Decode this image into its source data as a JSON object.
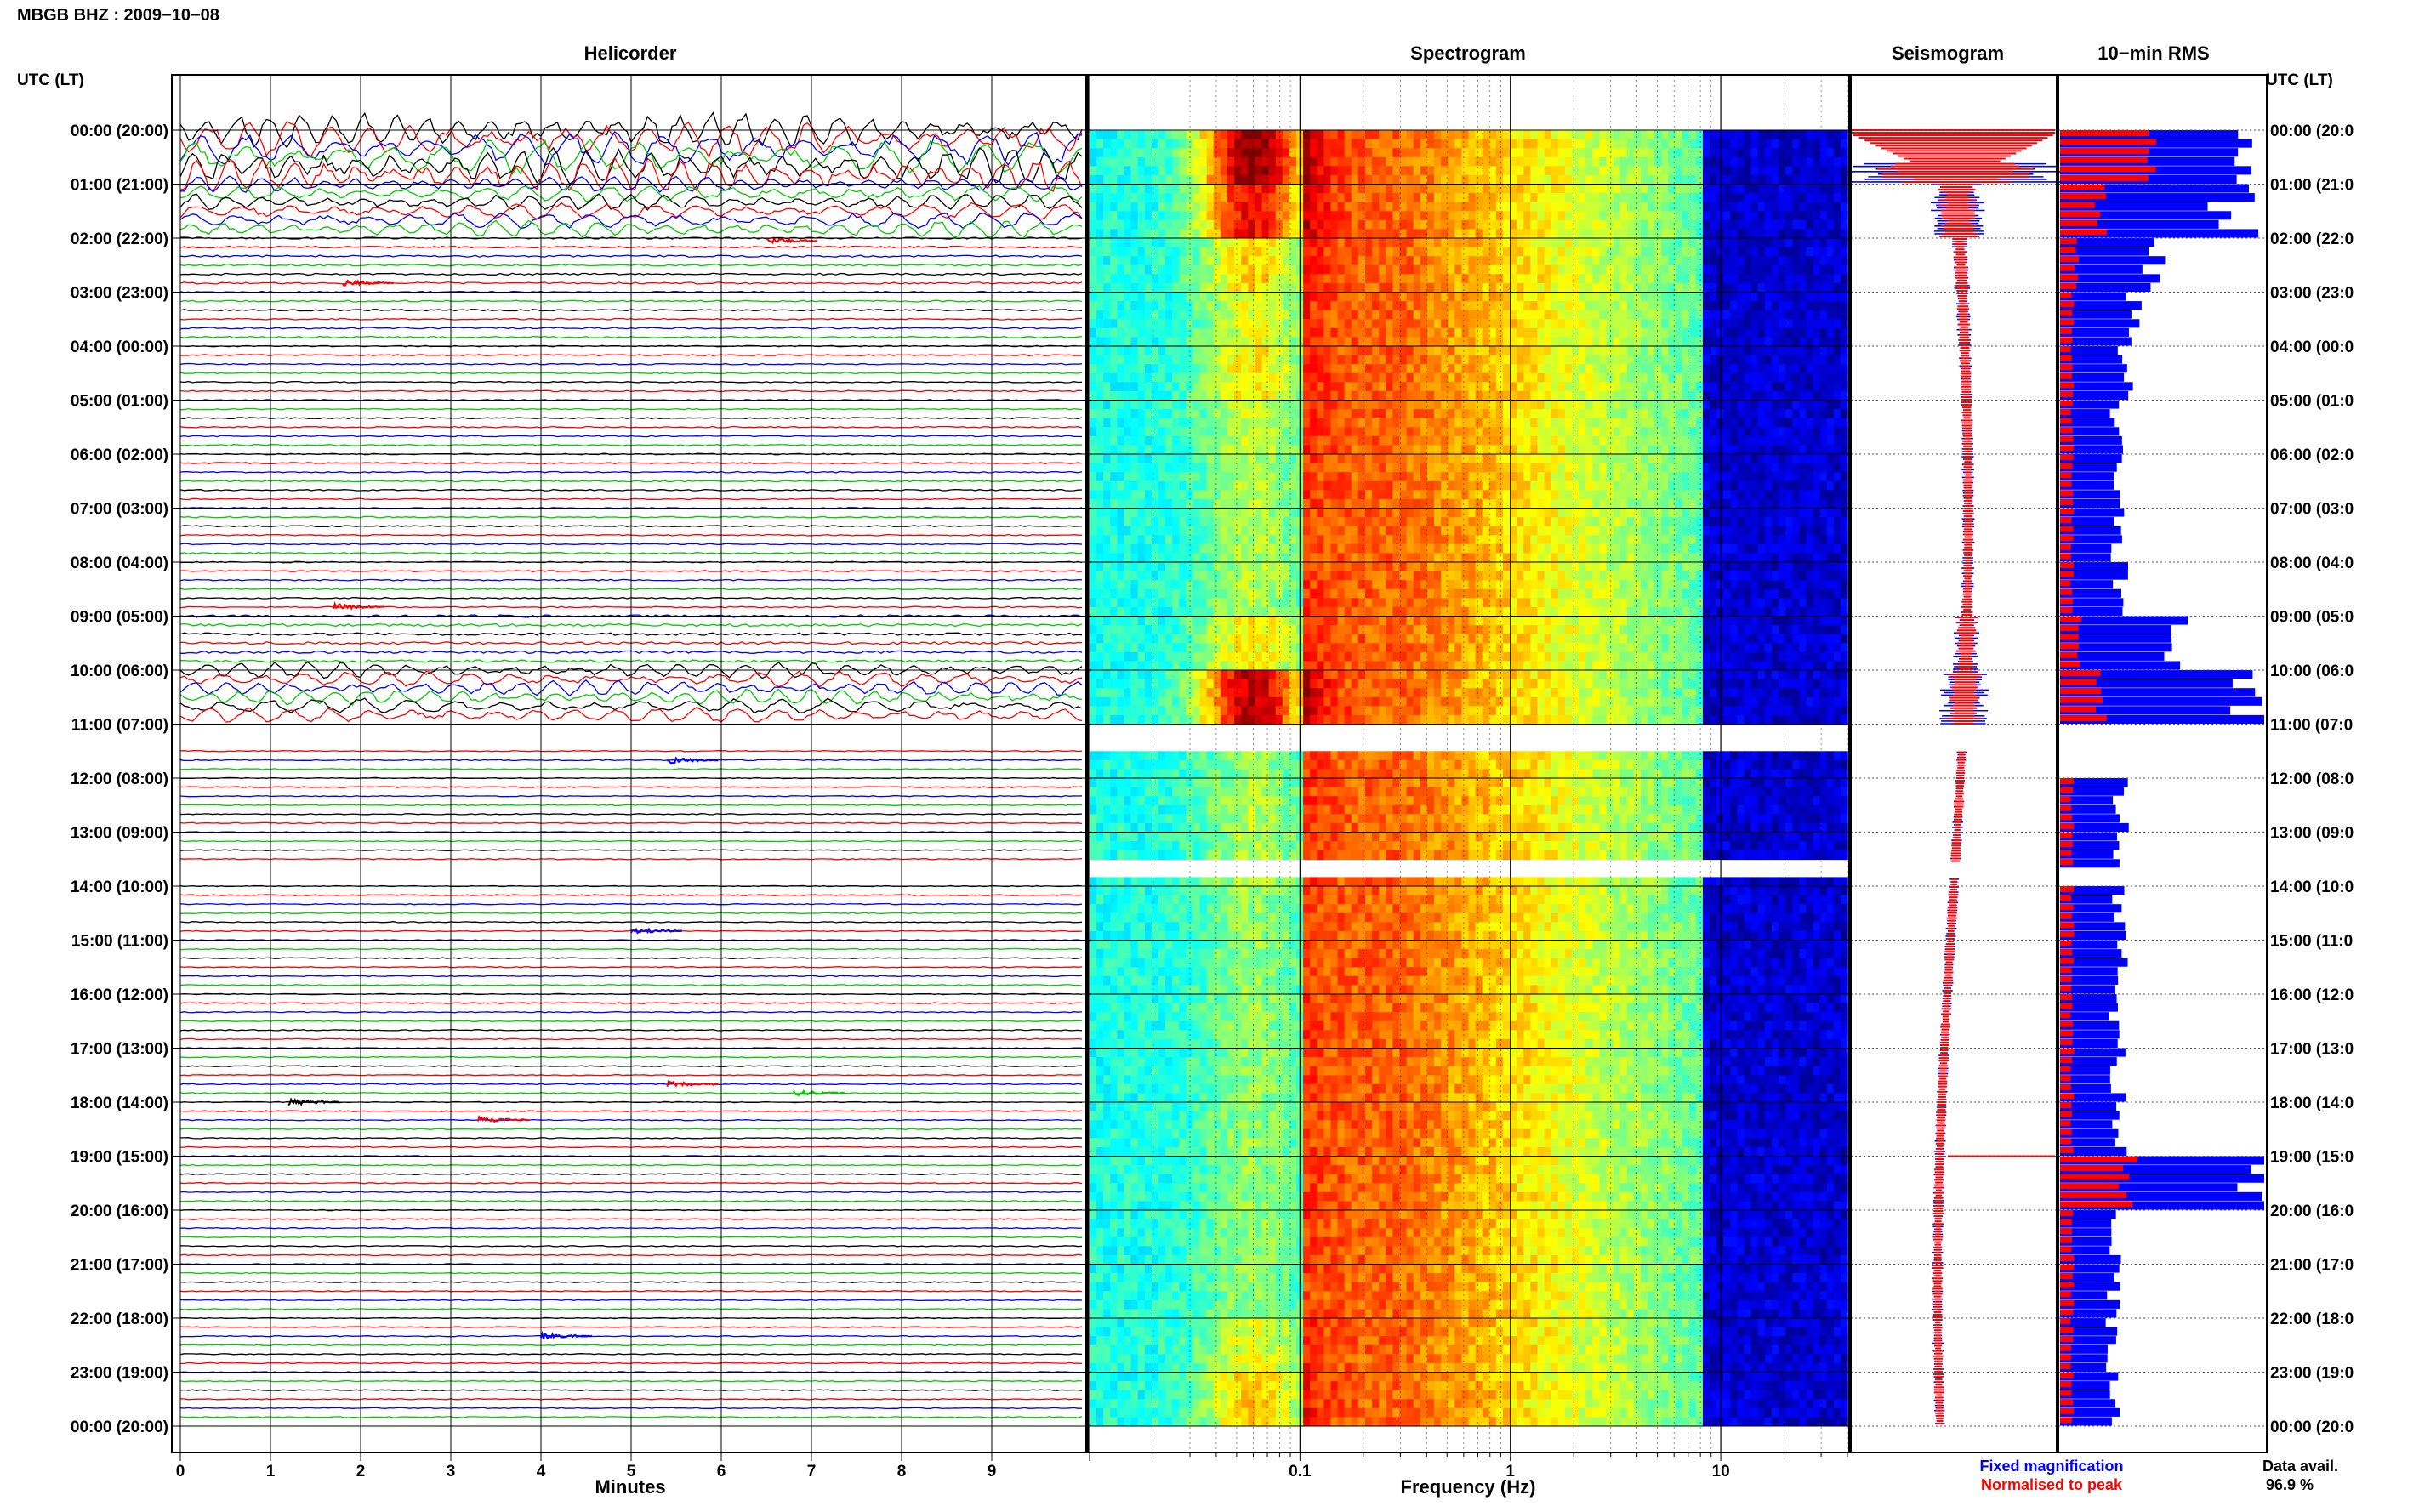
{
  "header": {
    "title": "MBGB BHZ : 2009−10−08",
    "utc_label_left": "UTC (LT)",
    "utc_label_right": "UTC (LT)"
  },
  "panels": {
    "helicorder": "Helicorder",
    "spectrogram": "Spectrogram",
    "seismogram": "Seismogram",
    "rms": "10−min RMS"
  },
  "time_labels": [
    "00:00 (20:00)",
    "01:00 (21:00)",
    "02:00 (22:00)",
    "03:00 (23:00)",
    "04:00 (00:00)",
    "05:00 (01:00)",
    "06:00 (02:00)",
    "07:00 (03:00)",
    "08:00 (04:00)",
    "09:00 (05:00)",
    "10:00 (06:00)",
    "11:00 (07:00)",
    "12:00 (08:00)",
    "13:00 (09:00)",
    "14:00 (10:00)",
    "15:00 (11:00)",
    "16:00 (12:00)",
    "17:00 (13:00)",
    "18:00 (14:00)",
    "19:00 (15:00)",
    "20:00 (16:00)",
    "21:00 (17:00)",
    "22:00 (18:00)",
    "23:00 (19:00)",
    "00:00 (20:00)"
  ],
  "time_labels_right": [
    "00:00 (20:0",
    "01:00 (21:0",
    "02:00 (22:0",
    "03:00 (23:0",
    "04:00 (00:0",
    "05:00 (01:0",
    "06:00 (02:0",
    "07:00 (03:0",
    "08:00 (04:0",
    "09:00 (05:0",
    "10:00 (06:0",
    "11:00 (07:0",
    "12:00 (08:0",
    "13:00 (09:0",
    "14:00 (10:0",
    "15:00 (11:0",
    "16:00 (12:0",
    "17:00 (13:0",
    "18:00 (14:0",
    "19:00 (15:0",
    "20:00 (16:0",
    "21:00 (17:0",
    "22:00 (18:0",
    "23:00 (19:0",
    "00:00 (20:0"
  ],
  "legend": {
    "fixed": "Fixed magnification",
    "normalised": "Normalised to peak",
    "data_avail_label": "Data avail.",
    "data_avail_value": "96.9 %"
  },
  "colors": {
    "trace_cycle": [
      "#000000",
      "#ff0000",
      "#0000ff",
      "#00cc00"
    ],
    "fixed": "#0000ff",
    "normalised": "#ff0000"
  },
  "chart_data": [
    {
      "type": "line",
      "name": "helicorder",
      "title": "Helicorder",
      "xlabel": "Minutes",
      "x_ticks": [
        "0",
        "1",
        "2",
        "3",
        "4",
        "5",
        "6",
        "7",
        "8",
        "9"
      ],
      "xlim": [
        0,
        10
      ],
      "ylim_hours": [
        0,
        24
      ],
      "lines_per_hour": 6,
      "gaps_hours": [
        [
          11.0,
          11.5
        ],
        [
          13.57,
          13.85
        ]
      ],
      "amplitude_by_hour": [
        3.5,
        1.6,
        0.7,
        0.6,
        0.5,
        0.5,
        0.5,
        0.5,
        0.5,
        1.0,
        1.5,
        0.4,
        0.4,
        0.4,
        0.4,
        0.4,
        0.4,
        0.4,
        0.4,
        0.4,
        0.4,
        0.4,
        0.4,
        0.4
      ],
      "events": [
        {
          "hour": 2.05,
          "minute": 6.5,
          "color": "red"
        },
        {
          "hour": 2.83,
          "minute": 1.8,
          "color": "red"
        },
        {
          "hour": 8.83,
          "minute": 1.7,
          "color": "red"
        },
        {
          "hour": 11.67,
          "minute": 5.4,
          "color": "blue"
        },
        {
          "hour": 14.83,
          "minute": 5.0,
          "color": "blue"
        },
        {
          "hour": 17.67,
          "minute": 5.4,
          "color": "red"
        },
        {
          "hour": 17.83,
          "minute": 6.8,
          "color": "green"
        },
        {
          "hour": 18.0,
          "minute": 1.2,
          "color": "black"
        },
        {
          "hour": 18.33,
          "minute": 3.3,
          "color": "red"
        },
        {
          "hour": 22.33,
          "minute": 4.0,
          "color": "blue"
        }
      ]
    },
    {
      "type": "heatmap",
      "name": "spectrogram",
      "title": "Spectrogram",
      "xlabel": "Frequency (Hz)",
      "x_scale": "log",
      "xlim": [
        0.01,
        40
      ],
      "x_ticks": [
        "0.1",
        "1",
        "10"
      ],
      "x_tick_values": [
        0.1,
        1,
        10
      ],
      "ylim_hours": [
        0,
        24
      ],
      "gaps_hours": [
        [
          5.0,
          5.05
        ],
        [
          8.7,
          8.75
        ],
        [
          11.0,
          11.5
        ],
        [
          13.57,
          13.85
        ]
      ],
      "microseism_peak_hz": 0.06,
      "microseism_strength_by_hour": [
        1.0,
        0.8,
        0.45,
        0.35,
        0.4,
        0.3,
        0.25,
        0.25,
        0.25,
        0.4,
        0.9,
        0.2,
        0.25,
        0.25,
        0.2,
        0.2,
        0.2,
        0.2,
        0.2,
        0.2,
        0.2,
        0.2,
        0.35,
        0.45
      ]
    },
    {
      "type": "line",
      "name": "seismogram",
      "title": "Seismogram",
      "series": [
        {
          "name": "Fixed magnification",
          "color": "#0000ff"
        },
        {
          "name": "Normalised to peak",
          "color": "#ff0000"
        }
      ],
      "ylim_hours": [
        0,
        24
      ]
    },
    {
      "type": "bar",
      "name": "rms",
      "title": "10−min RMS",
      "orientation": "horizontal",
      "ylim_hours": [
        0,
        24
      ],
      "bin_minutes": 10,
      "blue_relative_by_hour": [
        1.0,
        0.85,
        0.45,
        0.35,
        0.32,
        0.28,
        0.28,
        0.28,
        0.3,
        0.6,
        0.95,
        0.0,
        0.3,
        0.28,
        0.28,
        0.3,
        0.28,
        0.28,
        0.3,
        1.0,
        0.26,
        0.26,
        0.26,
        0.26
      ],
      "red_relative_by_hour": [
        0.5,
        0.2,
        0.08,
        0.06,
        0.06,
        0.06,
        0.06,
        0.06,
        0.06,
        0.1,
        0.2,
        0.0,
        0.06,
        0.06,
        0.06,
        0.06,
        0.06,
        0.06,
        0.06,
        0.33,
        0.06,
        0.06,
        0.06,
        0.06
      ]
    }
  ]
}
